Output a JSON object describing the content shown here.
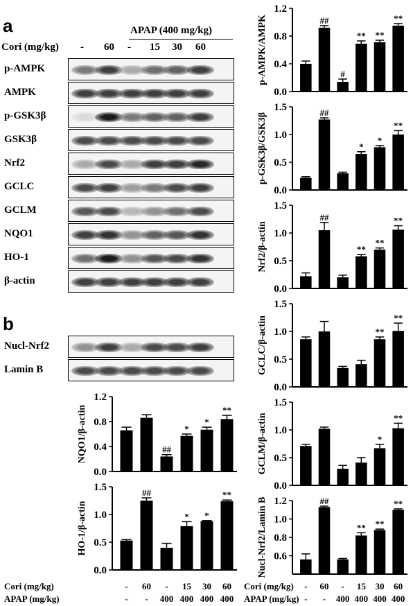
{
  "panel_a": {
    "letter": "a"
  },
  "panel_b": {
    "letter": "b"
  },
  "header": {
    "apap_label": "APAP (400 mg/kg)",
    "cori_label": "Cori (mg/kg)",
    "cori_values": [
      "-",
      "60",
      "-",
      "15",
      "30",
      "60"
    ]
  },
  "blots_a": [
    {
      "label": "p-AMPK",
      "intensity": [
        0.55,
        0.8,
        0.35,
        0.6,
        0.65,
        0.8
      ]
    },
    {
      "label": "AMPK",
      "intensity": [
        0.8,
        0.8,
        0.8,
        0.8,
        0.8,
        0.8
      ]
    },
    {
      "label": "p-GSK3β",
      "intensity": [
        0.15,
        0.95,
        0.55,
        0.65,
        0.65,
        0.8
      ]
    },
    {
      "label": "GSK3β",
      "intensity": [
        0.75,
        0.75,
        0.75,
        0.75,
        0.75,
        0.75
      ]
    },
    {
      "label": "Nrf2",
      "intensity": [
        0.35,
        0.75,
        0.35,
        0.8,
        0.8,
        0.9
      ]
    },
    {
      "label": "GCLC",
      "intensity": [
        0.75,
        0.8,
        0.4,
        0.55,
        0.75,
        0.8
      ]
    },
    {
      "label": "GCLM",
      "intensity": [
        0.7,
        0.75,
        0.3,
        0.45,
        0.6,
        0.75
      ]
    },
    {
      "label": "NQO1",
      "intensity": [
        0.8,
        0.85,
        0.45,
        0.65,
        0.7,
        0.85
      ]
    },
    {
      "label": "HO-1",
      "intensity": [
        0.6,
        0.95,
        0.45,
        0.7,
        0.75,
        0.85
      ]
    },
    {
      "label": "β-actin",
      "intensity": [
        0.8,
        0.8,
        0.8,
        0.8,
        0.8,
        0.8
      ]
    }
  ],
  "blots_b": [
    {
      "label": "Nucl-Nrf2",
      "intensity": [
        0.45,
        0.8,
        0.35,
        0.75,
        0.75,
        0.8
      ]
    },
    {
      "label": "Lamin B",
      "intensity": [
        0.75,
        0.75,
        0.75,
        0.75,
        0.75,
        0.75
      ]
    }
  ],
  "xaxis": {
    "cori_label": "Cori (mg/kg)",
    "cori_values": [
      "-",
      "60",
      "-",
      "15",
      "30",
      "60"
    ],
    "apap_label": "APAP (mg/kg)",
    "apap_values": [
      "-",
      "-",
      "400",
      "400",
      "400",
      "400"
    ]
  },
  "colors": {
    "bar": "#000000",
    "blot_bg": "#f4f4f4"
  },
  "chart_data": [
    {
      "type": "bar",
      "id": "p-AMPK/AMPK",
      "ylabel": "p-AMPK/AMPK",
      "ylim": [
        0,
        1.2
      ],
      "yticks": [
        "0.0",
        "0.4",
        "0.8",
        "1.2"
      ],
      "ytick_values": [
        0,
        0.4,
        0.8,
        1.2
      ],
      "values": [
        0.4,
        0.92,
        0.14,
        0.69,
        0.71,
        0.95
      ],
      "errors": [
        0.04,
        0.03,
        0.04,
        0.04,
        0.03,
        0.03
      ],
      "annotations": [
        "",
        "##",
        "#",
        "**",
        "**",
        "**"
      ]
    },
    {
      "type": "bar",
      "id": "p-GSK3β/GSK3β",
      "ylabel": "p-GSK3β/GSK3β",
      "ylim": [
        0,
        1.5
      ],
      "yticks": [
        "0.0",
        "0.5",
        "1.0",
        "1.5"
      ],
      "ytick_values": [
        0,
        0.5,
        1.0,
        1.5
      ],
      "values": [
        0.22,
        1.27,
        0.3,
        0.65,
        0.77,
        1.0
      ],
      "errors": [
        0.02,
        0.03,
        0.02,
        0.04,
        0.03,
        0.07
      ],
      "annotations": [
        "",
        "##",
        "",
        "*",
        "*",
        "**"
      ]
    },
    {
      "type": "bar",
      "id": "Nrf2/β-actin",
      "ylabel": "Nrf2/β-actin",
      "ylim": [
        0,
        1.5
      ],
      "yticks": [
        "0.0",
        "0.5",
        "1.0",
        "1.5"
      ],
      "ytick_values": [
        0,
        0.5,
        1.0,
        1.5
      ],
      "values": [
        0.22,
        1.05,
        0.2,
        0.58,
        0.7,
        1.06
      ],
      "errors": [
        0.06,
        0.14,
        0.04,
        0.03,
        0.03,
        0.07
      ],
      "annotations": [
        "",
        "##",
        "",
        "**",
        "**",
        "**"
      ]
    },
    {
      "type": "bar",
      "id": "GCLC/β-actin",
      "ylabel": "GCLC/β-actin",
      "ylim": [
        0,
        1.5
      ],
      "yticks": [
        "0.0",
        "0.5",
        "1.0",
        "1.5"
      ],
      "ytick_values": [
        0,
        0.5,
        1.0,
        1.5
      ],
      "values": [
        0.86,
        1.0,
        0.34,
        0.41,
        0.86,
        1.01
      ],
      "errors": [
        0.04,
        0.18,
        0.03,
        0.07,
        0.04,
        0.14
      ],
      "annotations": [
        "",
        "",
        "",
        "",
        "**",
        "**"
      ]
    },
    {
      "type": "bar",
      "id": "GCLM/β-actin",
      "ylabel": "GCLM/β-actin",
      "ylim": [
        0,
        1.5
      ],
      "yticks": [
        "0.0",
        "0.5",
        "1.0",
        "1.5"
      ],
      "ytick_values": [
        0,
        0.5,
        1.0,
        1.5
      ],
      "values": [
        0.71,
        1.02,
        0.3,
        0.41,
        0.67,
        1.03
      ],
      "errors": [
        0.03,
        0.03,
        0.06,
        0.09,
        0.07,
        0.09
      ],
      "annotations": [
        "",
        "",
        "",
        "",
        "*",
        "**"
      ]
    },
    {
      "type": "bar",
      "id": "Nucl-Nrf2/Lamin B",
      "ylabel": "Nucl-Nrf2/Lamin B",
      "ylim": [
        0.4,
        1.2
      ],
      "yticks": [
        "0.6",
        "0.8",
        "1.0",
        "1.2"
      ],
      "ytick_values": [
        0.6,
        0.8,
        1.0,
        1.2
      ],
      "values": [
        0.56,
        1.13,
        0.56,
        0.82,
        0.88,
        1.1
      ],
      "errors": [
        0.06,
        0.01,
        0.01,
        0.03,
        0.01,
        0.01
      ],
      "annotations": [
        "",
        "##",
        "",
        "**",
        "**",
        "**"
      ]
    },
    {
      "type": "bar",
      "id": "NQO1/β-actin",
      "ylabel": "NQO1/β-actin",
      "ylim": [
        0,
        1.2
      ],
      "yticks": [
        "0.0",
        "0.4",
        "0.8",
        "1.2"
      ],
      "ytick_values": [
        0,
        0.4,
        0.8,
        1.2
      ],
      "values": [
        0.66,
        0.86,
        0.24,
        0.57,
        0.67,
        0.84
      ],
      "errors": [
        0.05,
        0.05,
        0.03,
        0.03,
        0.04,
        0.06
      ],
      "annotations": [
        "",
        "",
        "##",
        "*",
        "*",
        "**"
      ]
    },
    {
      "type": "bar",
      "id": "HO-1/β-actin",
      "ylabel": "HO-1/β-actin",
      "ylim": [
        0,
        1.5
      ],
      "yticks": [
        "0.0",
        "0.5",
        "1.0",
        "1.5"
      ],
      "ytick_values": [
        0,
        0.5,
        1.0,
        1.5
      ],
      "values": [
        0.53,
        1.25,
        0.4,
        0.79,
        0.88,
        1.24
      ],
      "errors": [
        0.02,
        0.05,
        0.08,
        0.08,
        0.01,
        0.02
      ],
      "annotations": [
        "",
        "##",
        "",
        "*",
        "*",
        "**"
      ]
    }
  ]
}
